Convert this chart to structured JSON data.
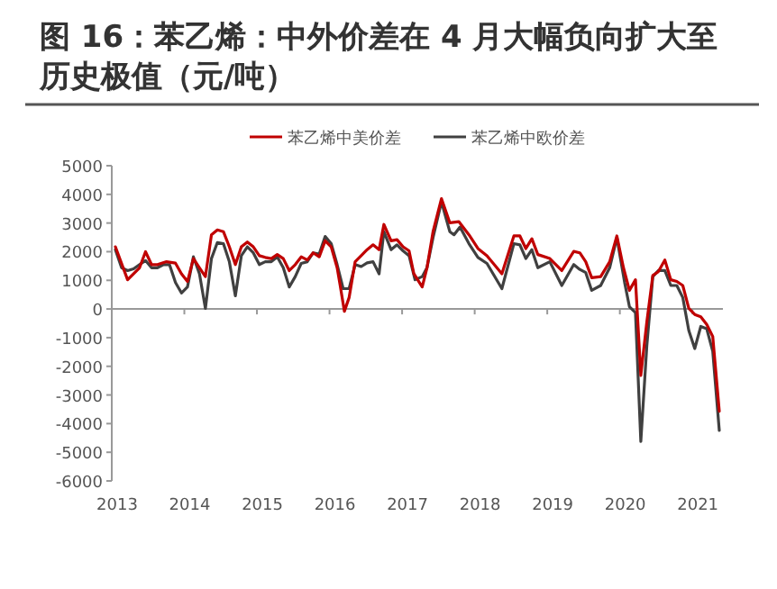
{
  "chart_data": {
    "type": "line",
    "title": "图 16：苯乙烯：中外价差在 4 月大幅负向扩大至历史极值（元/吨）",
    "series": [
      {
        "name": "苯乙烯中美价差",
        "color": "#c00000",
        "x": [
          2013.05,
          2013.218,
          2013.383,
          2013.465,
          2013.548,
          2013.63,
          2013.754,
          2013.878,
          2013.96,
          2014.043,
          2014.125,
          2014.208,
          2014.29,
          2014.373,
          2014.455,
          2014.538,
          2014.62,
          2014.703,
          2014.785,
          2014.868,
          2014.95,
          2015.033,
          2015.115,
          2015.198,
          2015.28,
          2015.363,
          2015.445,
          2015.528,
          2015.61,
          2015.693,
          2015.775,
          2015.858,
          2015.94,
          2016.023,
          2016.105,
          2016.147,
          2016.205,
          2016.27,
          2016.353,
          2016.436,
          2016.518,
          2016.6,
          2016.683,
          2016.749,
          2016.848,
          2016.93,
          2017.013,
          2017.096,
          2017.162,
          2017.277,
          2017.343,
          2017.426,
          2017.542,
          2017.657,
          2017.781,
          2017.921,
          2018.045,
          2018.169,
          2018.375,
          2018.54,
          2018.623,
          2018.705,
          2018.788,
          2018.87,
          2019.035,
          2019.2,
          2019.365,
          2019.448,
          2019.53,
          2019.612,
          2019.736,
          2019.86,
          2019.959,
          2020.05,
          2020.132,
          2020.215,
          2020.289,
          2020.372,
          2020.454,
          2020.529,
          2020.62,
          2020.702,
          2020.785,
          2020.867,
          2020.95,
          2021.032,
          2021.115,
          2021.197,
          2021.28,
          2021.37
        ],
        "values": [
          2170,
          1020,
          1440,
          2000,
          1550,
          1550,
          1650,
          1600,
          1230,
          960,
          1760,
          1440,
          1130,
          2590,
          2760,
          2700,
          2170,
          1550,
          2170,
          2340,
          2170,
          1860,
          1800,
          1760,
          1900,
          1760,
          1340,
          1550,
          1820,
          1710,
          1960,
          1820,
          2380,
          2170,
          1440,
          820,
          -80,
          400,
          1650,
          1860,
          2070,
          2240,
          2070,
          2950,
          2380,
          2420,
          2170,
          2030,
          1230,
          770,
          1440,
          2700,
          3850,
          3010,
          3050,
          2590,
          2110,
          1860,
          1230,
          2550,
          2550,
          2110,
          2450,
          1900,
          1760,
          1340,
          2010,
          1960,
          1650,
          1090,
          1130,
          1650,
          2550,
          1440,
          650,
          1020,
          -2320,
          -440,
          1170,
          1300,
          1710,
          1020,
          960,
          820,
          20,
          -190,
          -270,
          -540,
          -960,
          -3570
        ]
      },
      {
        "name": "苯乙烯中欧价差",
        "color": "#404040",
        "x": [
          2013.05,
          2013.135,
          2013.218,
          2013.3,
          2013.383,
          2013.465,
          2013.548,
          2013.63,
          2013.713,
          2013.795,
          2013.878,
          2013.96,
          2014.043,
          2014.125,
          2014.208,
          2014.29,
          2014.373,
          2014.455,
          2014.538,
          2014.62,
          2014.703,
          2014.785,
          2014.868,
          2014.95,
          2015.033,
          2015.115,
          2015.198,
          2015.28,
          2015.363,
          2015.445,
          2015.528,
          2015.61,
          2015.693,
          2015.775,
          2015.858,
          2015.94,
          2016.023,
          2016.105,
          2016.188,
          2016.27,
          2016.353,
          2016.436,
          2016.518,
          2016.6,
          2016.683,
          2016.749,
          2016.848,
          2016.93,
          2017.013,
          2017.096,
          2017.178,
          2017.277,
          2017.343,
          2017.426,
          2017.542,
          2017.657,
          2017.715,
          2017.798,
          2017.921,
          2018.045,
          2018.169,
          2018.375,
          2018.54,
          2018.623,
          2018.705,
          2018.788,
          2018.87,
          2019.035,
          2019.2,
          2019.365,
          2019.448,
          2019.53,
          2019.612,
          2019.736,
          2019.86,
          2019.959,
          2020.066,
          2020.132,
          2020.215,
          2020.289,
          2020.372,
          2020.454,
          2020.529,
          2020.62,
          2020.702,
          2020.785,
          2020.867,
          2020.95,
          2021.032,
          2021.115,
          2021.197,
          2021.28,
          2021.37
        ],
        "values": [
          2070,
          1440,
          1340,
          1400,
          1550,
          1690,
          1440,
          1440,
          1550,
          1550,
          920,
          560,
          770,
          1820,
          1230,
          20,
          1760,
          2320,
          2280,
          1650,
          460,
          1860,
          2170,
          1960,
          1550,
          1650,
          1650,
          1820,
          1440,
          770,
          1130,
          1590,
          1650,
          1960,
          1920,
          2530,
          2280,
          1550,
          710,
          710,
          1550,
          1480,
          1610,
          1650,
          1230,
          2700,
          2070,
          2240,
          2030,
          1860,
          1020,
          1130,
          1440,
          2490,
          3740,
          2700,
          2590,
          2860,
          2280,
          1800,
          1590,
          710,
          2280,
          2240,
          1760,
          2070,
          1440,
          1650,
          820,
          1550,
          1380,
          1270,
          650,
          820,
          1440,
          2490,
          920,
          80,
          -130,
          -4620,
          -1270,
          1130,
          1340,
          1340,
          820,
          820,
          400,
          -750,
          -1380,
          -610,
          -690,
          -1480,
          -4240
        ]
      }
    ],
    "xlim": [
      2013,
      2021.42
    ],
    "xticks": [
      2013,
      2014,
      2015,
      2016,
      2017,
      2018,
      2019,
      2020,
      2021
    ],
    "ylim": [
      -6000,
      5000
    ],
    "yticks": [
      -6000,
      -5000,
      -4000,
      -3000,
      -2000,
      -1000,
      0,
      1000,
      2000,
      3000,
      4000,
      5000
    ],
    "legend": "top"
  }
}
